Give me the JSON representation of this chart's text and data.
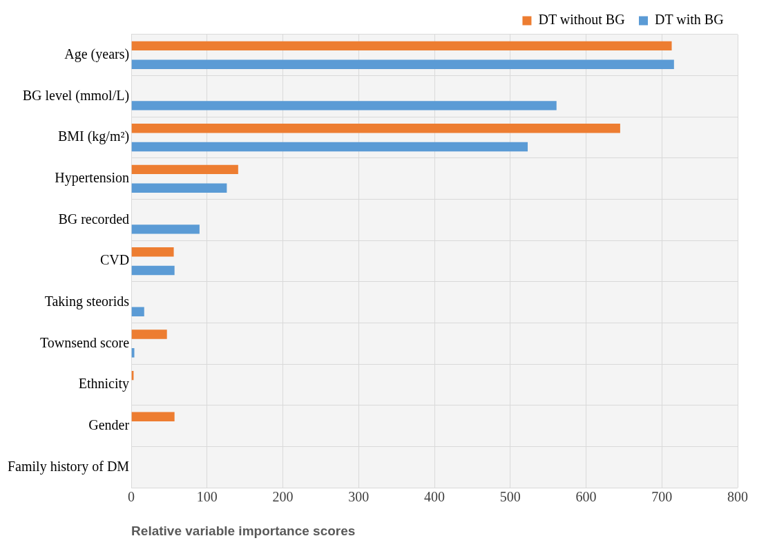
{
  "chart_data": {
    "type": "bar",
    "orientation": "horizontal",
    "xlabel": "Relative variable importance scores",
    "categories": [
      "Age (years)",
      "BG level (mmol/L)",
      "BMI (kg/m²)",
      "Hypertension",
      "BG recorded",
      "CVD",
      "Taking steorids",
      "Townsend score",
      "Ethnicity",
      "Gender",
      "Family history of DM"
    ],
    "series": [
      {
        "name": "DT without BG",
        "color": "#ed7d31",
        "values": [
          713,
          null,
          645,
          141,
          null,
          56,
          null,
          47,
          3,
          57,
          null
        ]
      },
      {
        "name": "DT with BG",
        "color": "#5b9bd5",
        "values": [
          716,
          561,
          523,
          126,
          90,
          57,
          17,
          4,
          null,
          null,
          null
        ]
      }
    ],
    "xlim": [
      0,
      800
    ],
    "xticks": [
      0,
      100,
      200,
      300,
      400,
      500,
      600,
      700,
      800
    ],
    "grid": true,
    "legend": "top right"
  }
}
